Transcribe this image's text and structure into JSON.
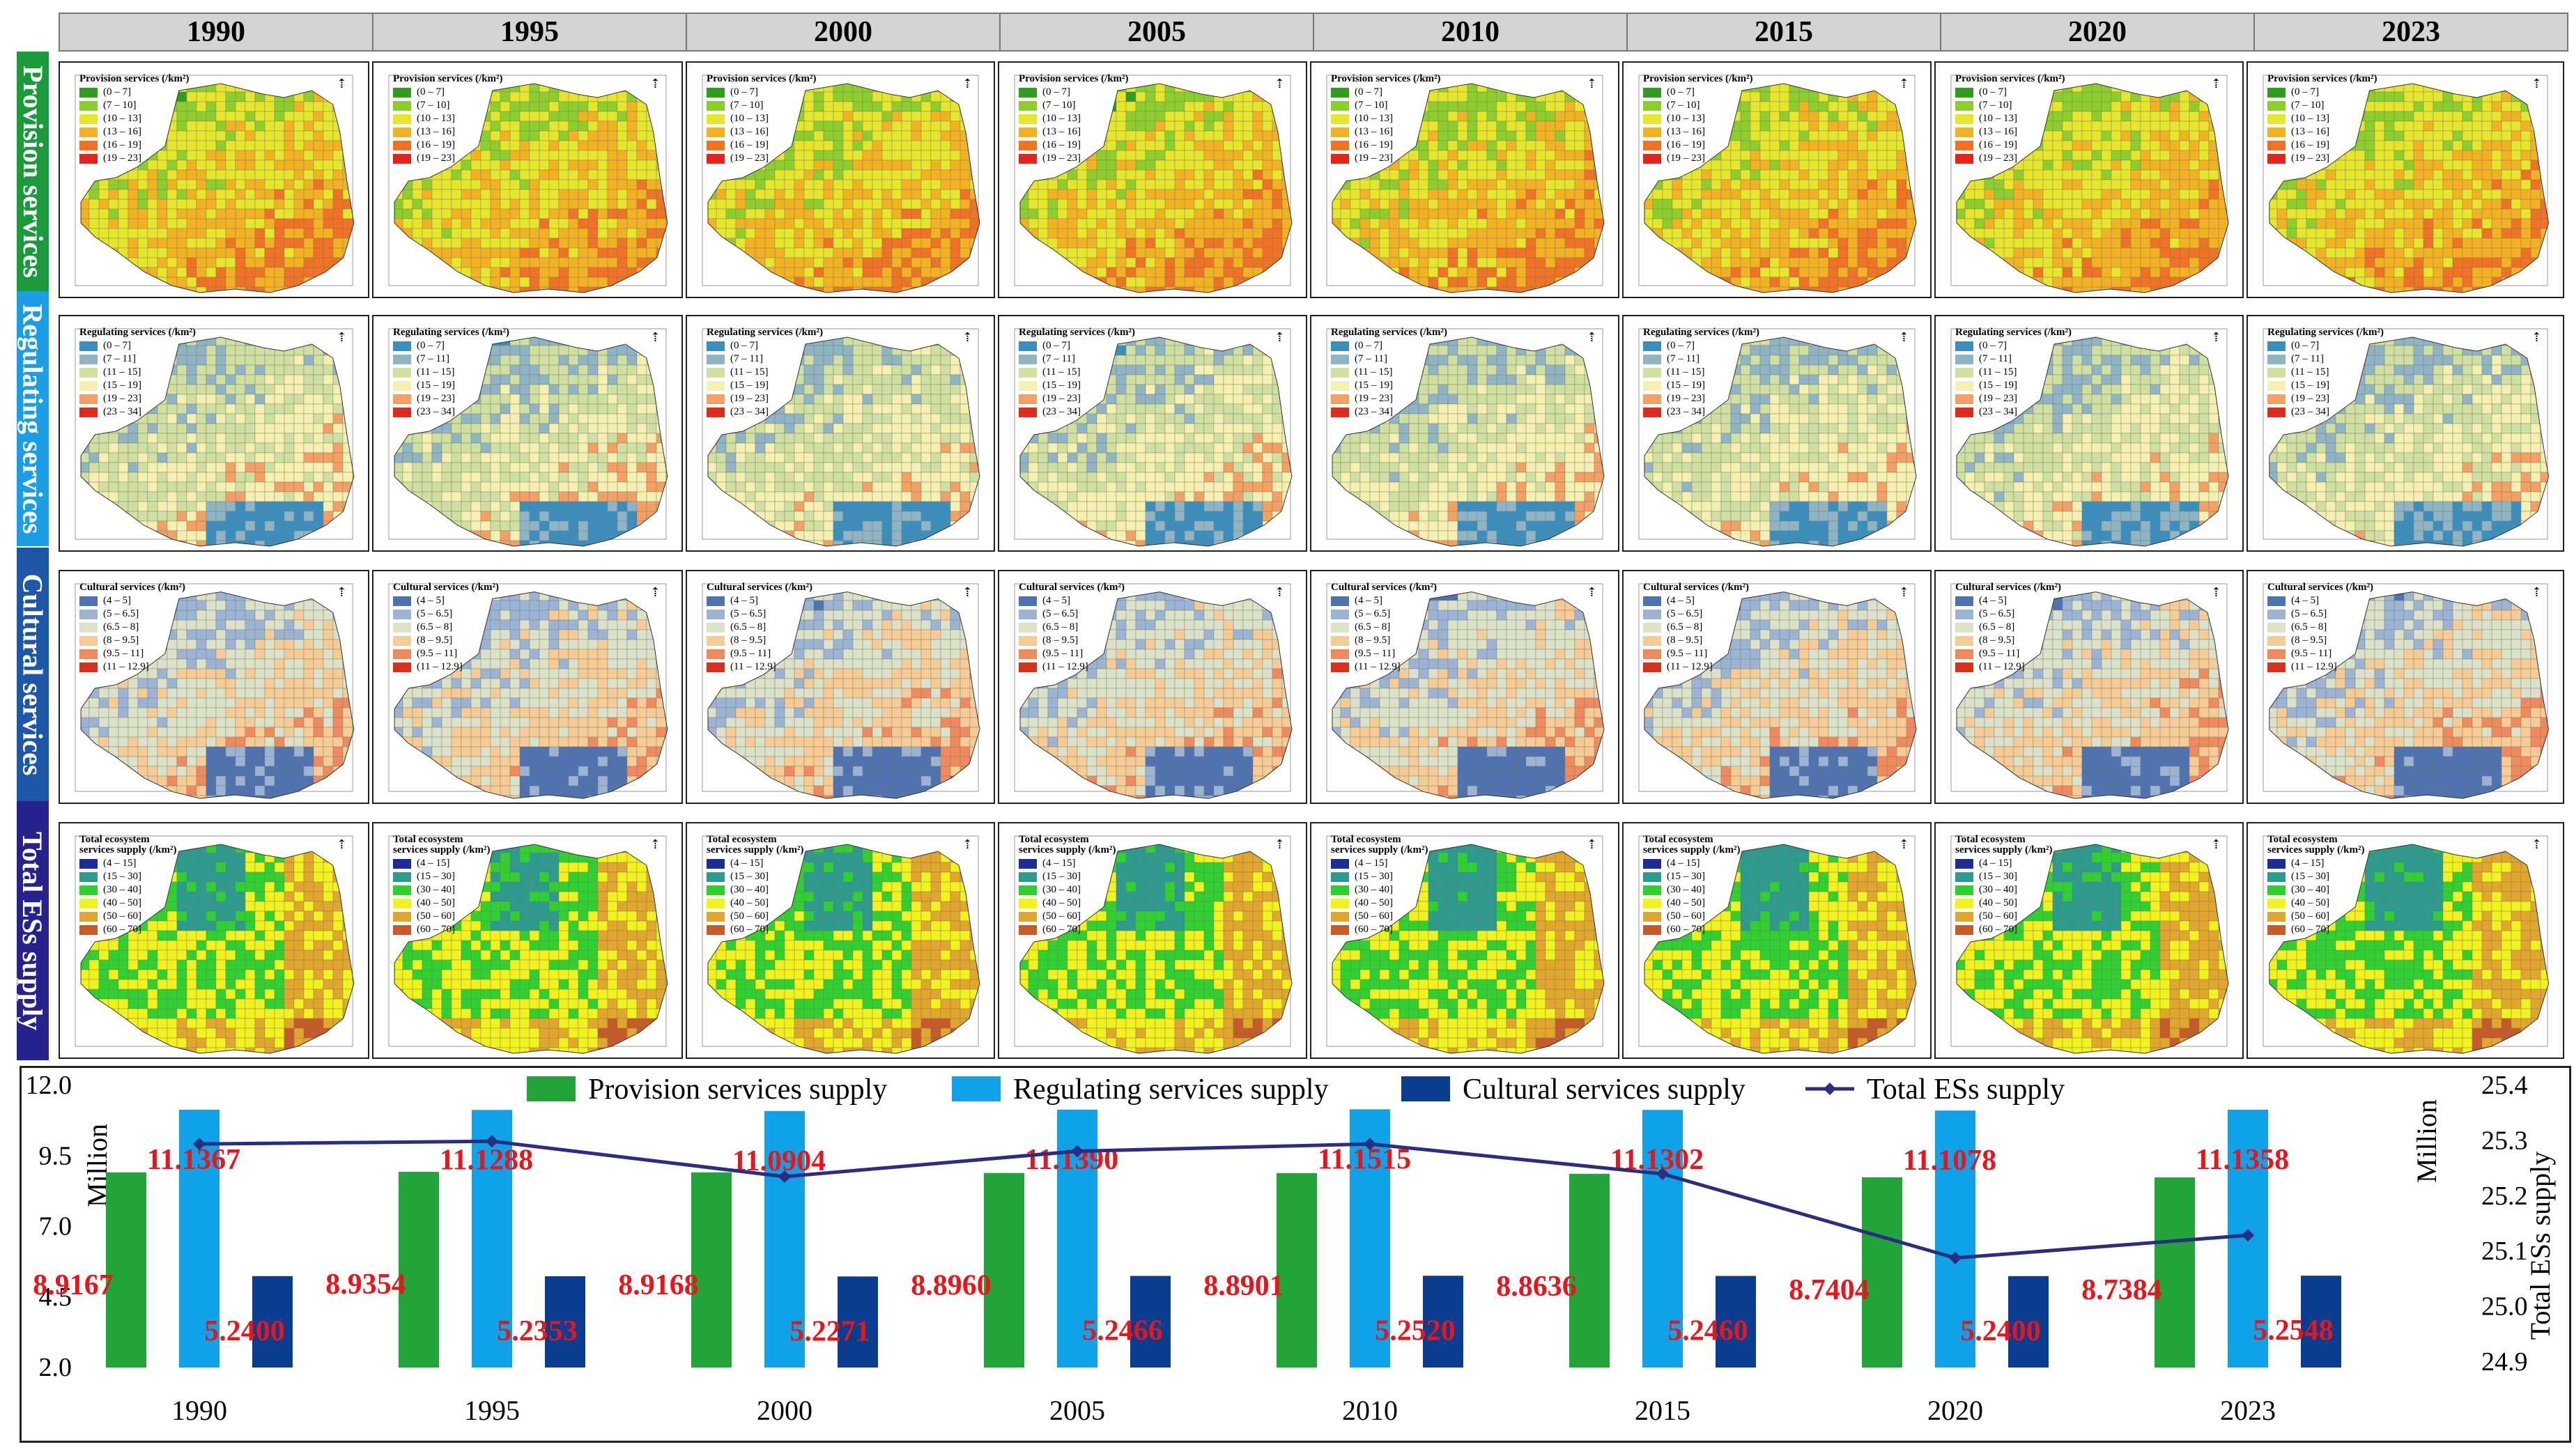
{
  "years": [
    "1990",
    "1995",
    "2000",
    "2005",
    "2010",
    "2015",
    "2020",
    "2023"
  ],
  "rows": [
    {
      "label": "Provision services",
      "color": "#1a9a3a",
      "legend_title": "Provision services (/km²)",
      "legend_items": [
        "(0 – 7]",
        "(7 – 10]",
        "(10 – 13]",
        "(13 – 16]",
        "(16 – 19]",
        "(19 – 23]"
      ],
      "legend_colors": [
        "#2e9e1f",
        "#8ccf2a",
        "#e6e62a",
        "#f3b321",
        "#f07222",
        "#e8211c"
      ]
    },
    {
      "label": "Regulating services",
      "color": "#1c9ee6",
      "legend_title": "Regulating services (/km²)",
      "legend_items": [
        "(0 – 7]",
        "(7 – 11]",
        "(11 – 15]",
        "(15 – 19]",
        "(19 – 23]",
        "(23 – 34]"
      ],
      "legend_colors": [
        "#3a8fbf",
        "#8fb5c4",
        "#cfe0a0",
        "#f5f0b0",
        "#f3a062",
        "#e0281c"
      ]
    },
    {
      "label": "Cultural services",
      "color": "#1e56a8",
      "legend_title": "Cultural services (/km²)",
      "legend_items": [
        "(4 – 5]",
        "(5 – 6.5]",
        "(6.5 – 8]",
        "(8 – 9.5]",
        "(9.5 – 11]",
        "(11 – 12.9]"
      ],
      "legend_colors": [
        "#4f72b0",
        "#9cb4d4",
        "#dbe2c8",
        "#f6cc94",
        "#f08a5c",
        "#d9301e"
      ]
    },
    {
      "label": "Total ESs supply",
      "color": "#26228e",
      "legend_title": "Total ecosystem\nservices supply (/km²)",
      "legend_items": [
        "(4 – 15]",
        "(15 – 30]",
        "(30 – 40]",
        "(40 – 50]",
        "(50 – 60]",
        "(60 – 70]"
      ],
      "legend_colors": [
        "#1b2a9c",
        "#2a9b8c",
        "#2fd12f",
        "#f2f21c",
        "#e2a62a",
        "#c75a26"
      ]
    }
  ],
  "chart_data": {
    "type": "bar",
    "categories": [
      "1990",
      "1995",
      "2000",
      "2005",
      "2010",
      "2015",
      "2020",
      "2023"
    ],
    "series": [
      {
        "name": "Provision services supply",
        "color": "#22a43a",
        "values": [
          8.9167,
          8.9354,
          8.9168,
          8.896,
          8.8901,
          8.8636,
          8.7404,
          8.7384
        ],
        "labels": [
          "8.9167",
          "8.9354",
          "8.9168",
          "8.8960",
          "8.8901",
          "8.8636",
          "8.7404",
          "8.7384"
        ]
      },
      {
        "name": "Regulating services supply",
        "color": "#0fa2e8",
        "values": [
          11.1367,
          11.1288,
          11.0904,
          11.139,
          11.1515,
          11.1302,
          11.1078,
          11.1358
        ],
        "labels": [
          "11.1367",
          "11.1288",
          "11.0904",
          "11.1390",
          "11.1515",
          "11.1302",
          "11.1078",
          "11.1358"
        ]
      },
      {
        "name": "Cultural services supply",
        "color": "#0a3d8f",
        "values": [
          5.24,
          5.2353,
          5.2271,
          5.2466,
          5.252,
          5.246,
          5.24,
          5.2548
        ],
        "labels": [
          "5.2400",
          "5.2353",
          "5.2271",
          "5.2466",
          "5.2520",
          "5.2460",
          "5.2400",
          "5.2548"
        ]
      }
    ],
    "line": {
      "name": "Total ESs supply",
      "color": "#2b2d80",
      "values": [
        25.294,
        25.299,
        25.235,
        25.281,
        25.294,
        25.24,
        25.088,
        25.129
      ]
    },
    "left_axis": {
      "label": "Million",
      "ticks": [
        "12.0",
        "9.5",
        "7.0",
        "4.5",
        "2.0"
      ],
      "ylim": [
        2.0,
        12.0
      ]
    },
    "right_axis": {
      "label": "Million",
      "label2": "Total ESs supply",
      "ticks": [
        "25.4",
        "25.3",
        "25.2",
        "25.1",
        "25.0",
        "24.9"
      ],
      "ylim": [
        24.9,
        25.4
      ]
    },
    "label_color": "#e8151b"
  }
}
